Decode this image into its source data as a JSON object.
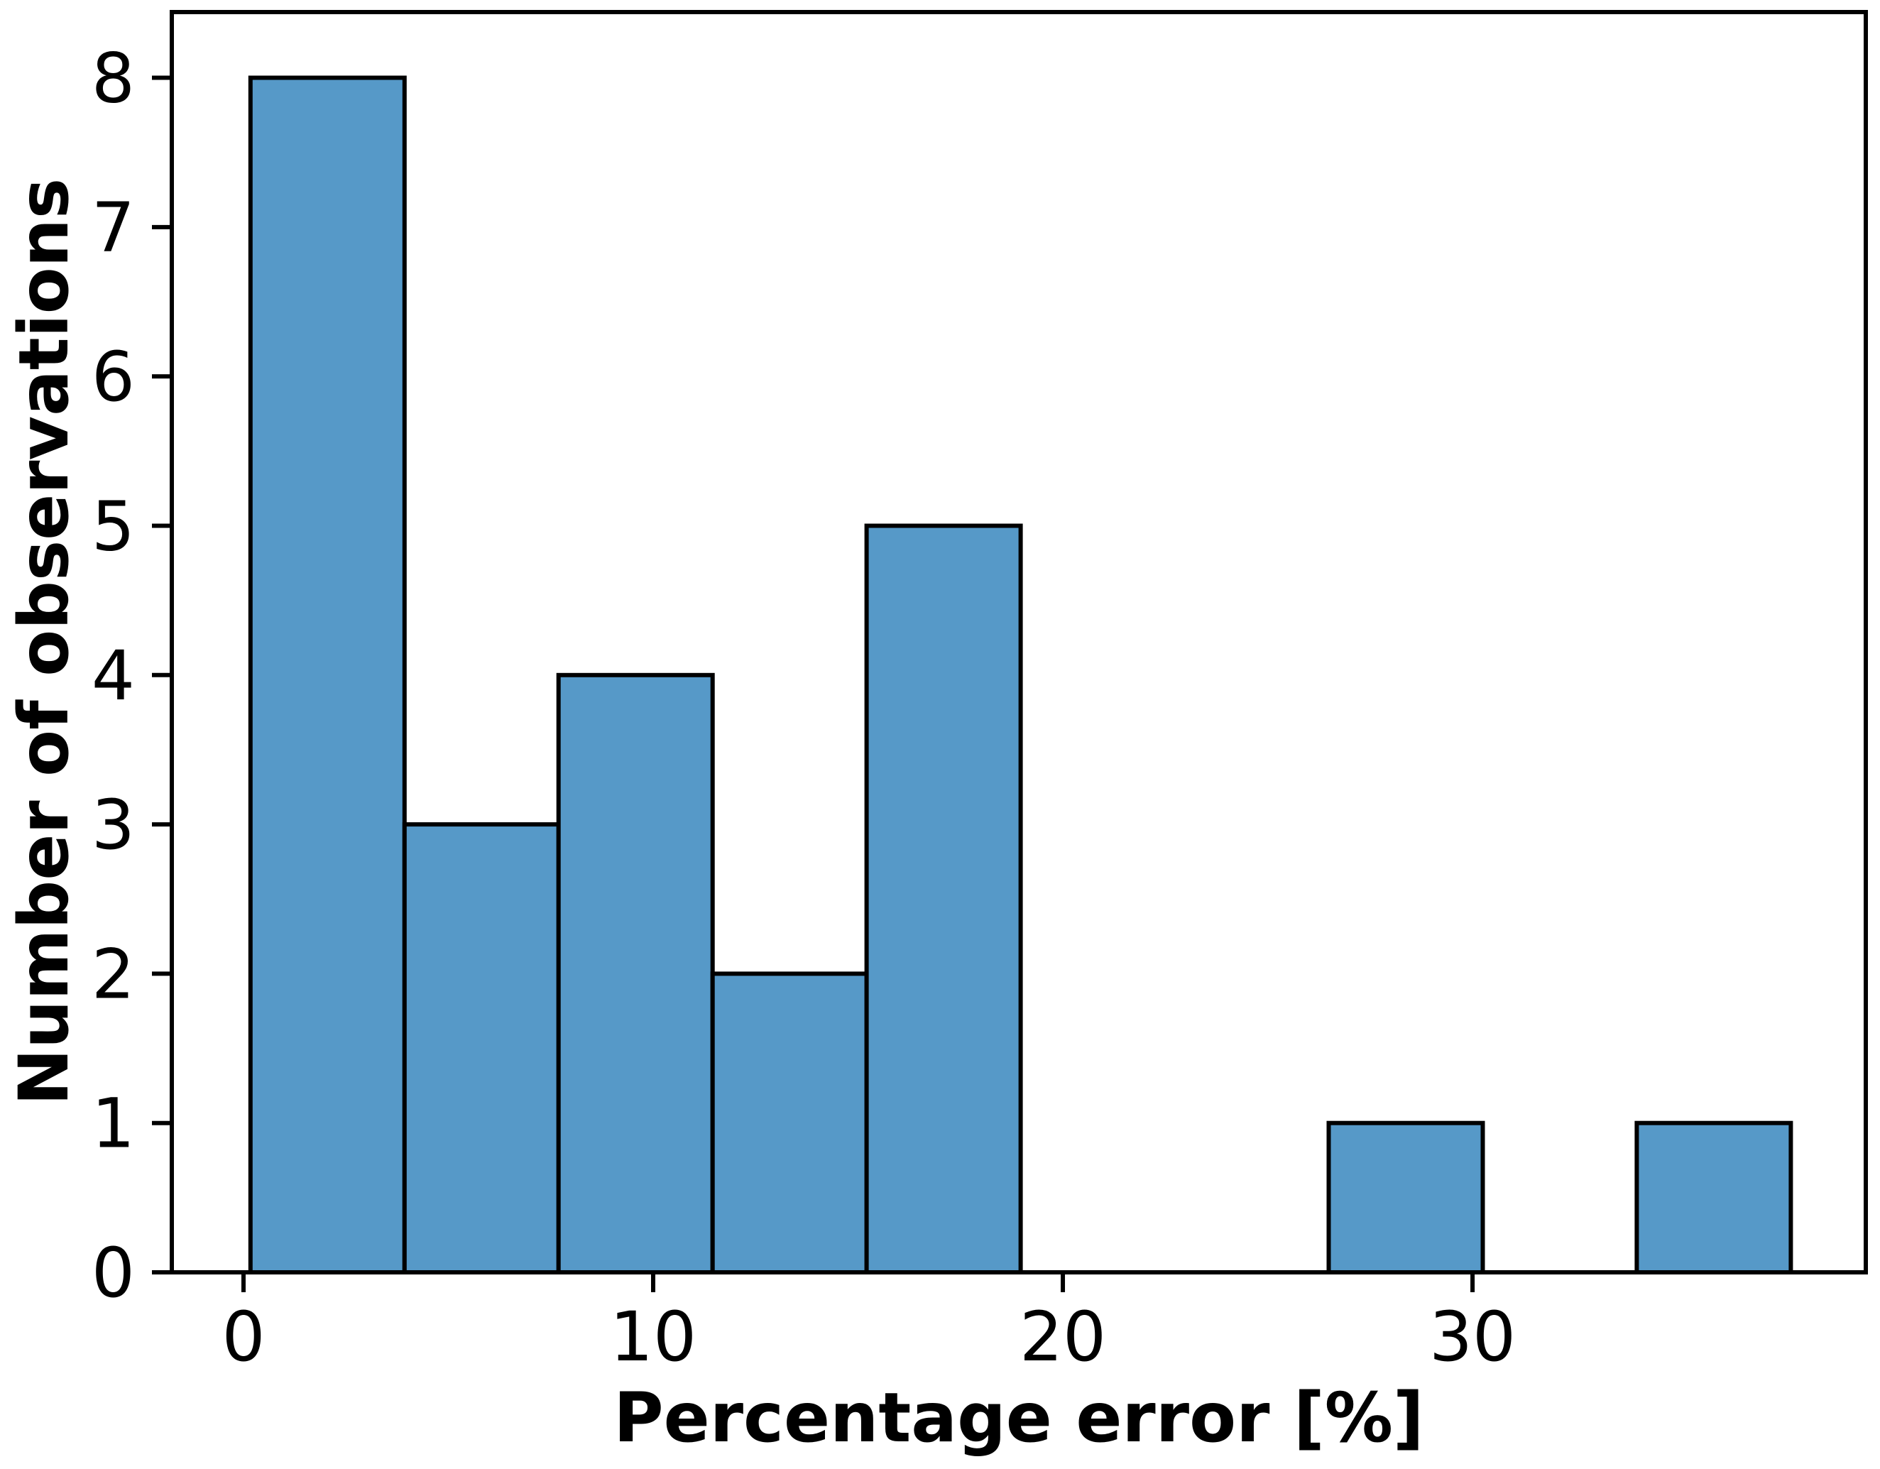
{
  "chart_data": {
    "type": "bar",
    "subtype": "histogram",
    "title": "",
    "xlabel": "Percentage error [%]",
    "ylabel": "Number of observations",
    "bin_edges": [
      0.17,
      3.93,
      7.69,
      11.45,
      15.21,
      18.97,
      22.73,
      26.49,
      30.25,
      34.01,
      37.77
    ],
    "counts": [
      8,
      3,
      4,
      2,
      5,
      0,
      0,
      1,
      0,
      1
    ],
    "xticks": [
      0,
      10,
      20,
      30
    ],
    "yticks": [
      0,
      1,
      2,
      3,
      4,
      5,
      6,
      7,
      8
    ],
    "xlim": [
      -1.75,
      39.6
    ],
    "ylim": [
      0,
      8.44
    ],
    "grid": false,
    "legend": null,
    "bar_fill_color": "#5699C8",
    "bar_edge_color": "#000000",
    "axis_color": "#000000",
    "text_color": "#000000",
    "background_color": "#FFFFFF"
  }
}
